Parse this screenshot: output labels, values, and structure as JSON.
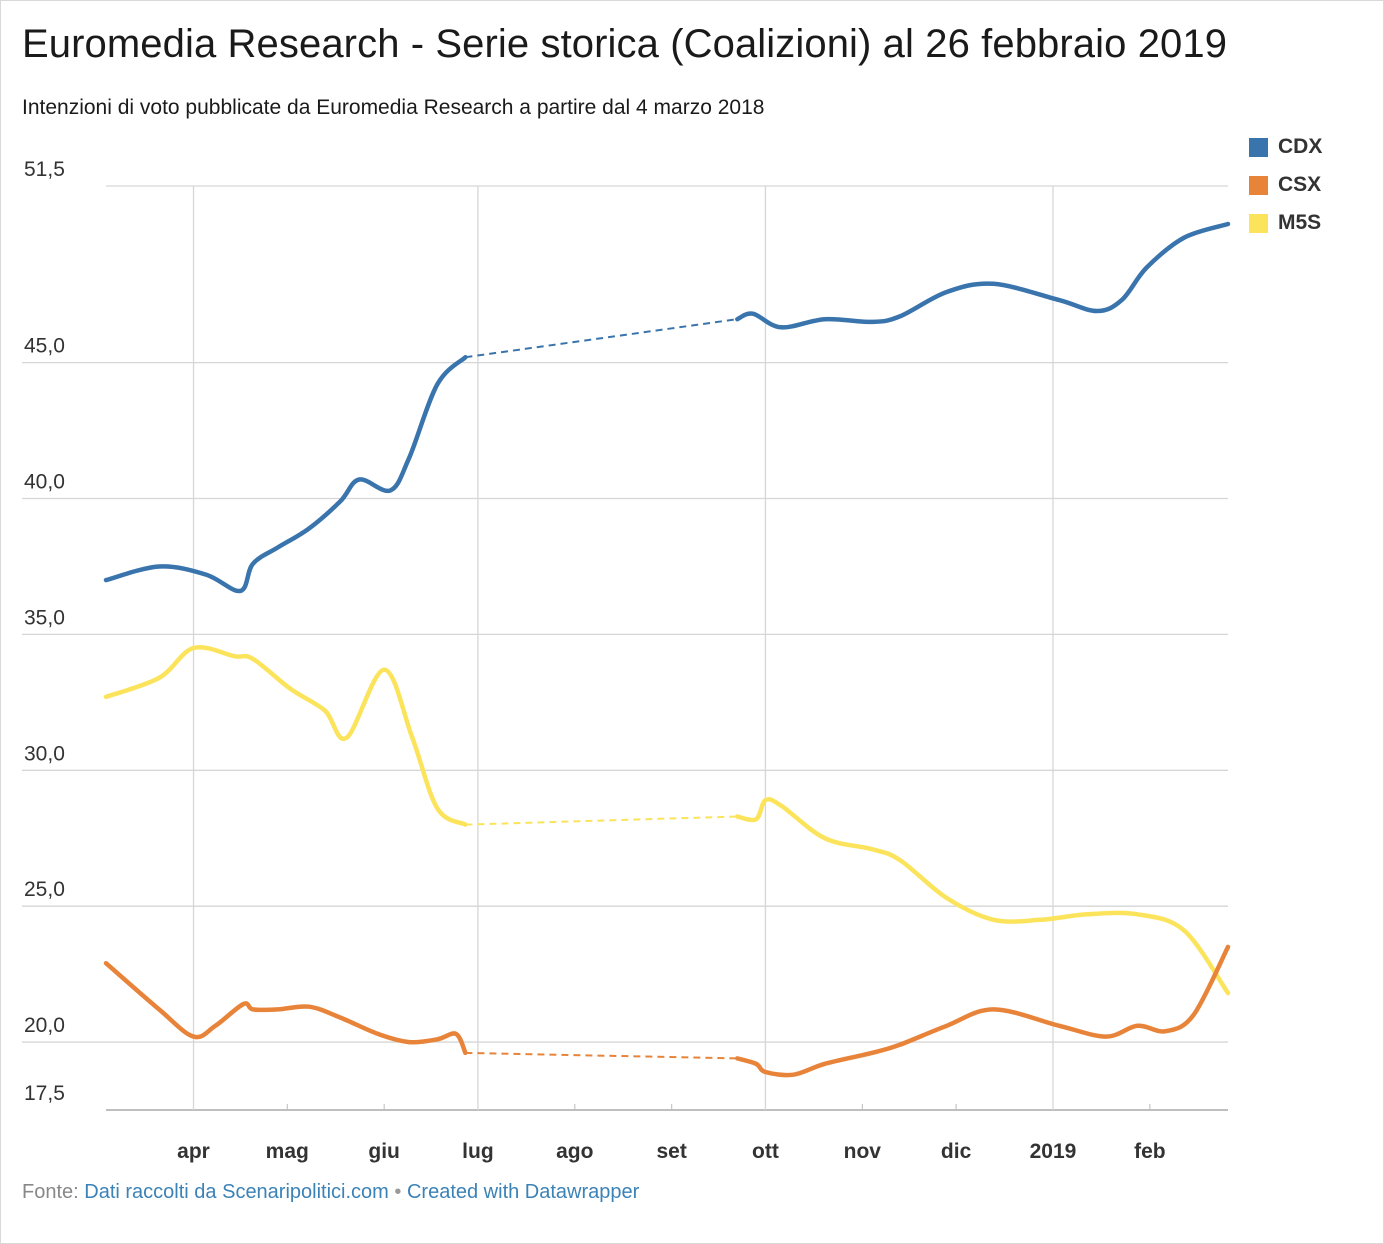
{
  "title": "Euromedia Research - Serie storica (Coalizioni) al 26 febbraio 2019",
  "subtitle": "Intenzioni di voto pubblicate da Euromedia Research a partire dal 4 marzo 2018",
  "footer": {
    "prefix": "Fonte:",
    "source_link": "Dati raccolti da Scenaripolitici.com",
    "separator": "•",
    "credit_link": "Created with Datawrapper"
  },
  "chart_data": {
    "type": "line",
    "title": "Euromedia Research - Serie storica (Coalizioni) al 26 febbraio 2019",
    "xlabel": "",
    "ylabel": "",
    "x_range": [
      "2018-03-04",
      "2019-02-26"
    ],
    "ylim": [
      17.5,
      51.5
    ],
    "y_ticks": [
      {
        "value": 51.5,
        "label": "51,5"
      },
      {
        "value": 45.0,
        "label": "45,0"
      },
      {
        "value": 40.0,
        "label": "40,0"
      },
      {
        "value": 35.0,
        "label": "35,0"
      },
      {
        "value": 30.0,
        "label": "30,0"
      },
      {
        "value": 25.0,
        "label": "25,0"
      },
      {
        "value": 20.0,
        "label": "20,0"
      },
      {
        "value": 17.5,
        "label": "17,5"
      }
    ],
    "x_ticks": [
      {
        "date": "2018-04-01",
        "label": "apr",
        "gridline": true
      },
      {
        "date": "2018-05-01",
        "label": "mag",
        "gridline": false
      },
      {
        "date": "2018-06-01",
        "label": "giu",
        "gridline": false
      },
      {
        "date": "2018-07-01",
        "label": "lug",
        "gridline": true
      },
      {
        "date": "2018-08-01",
        "label": "ago",
        "gridline": false
      },
      {
        "date": "2018-09-01",
        "label": "set",
        "gridline": false
      },
      {
        "date": "2018-10-01",
        "label": "ott",
        "gridline": true
      },
      {
        "date": "2018-11-01",
        "label": "nov",
        "gridline": false
      },
      {
        "date": "2018-12-01",
        "label": "dic",
        "gridline": false
      },
      {
        "date": "2019-01-01",
        "label": "2019",
        "gridline": true
      },
      {
        "date": "2019-02-01",
        "label": "feb",
        "gridline": false
      }
    ],
    "grid": true,
    "legend_position": "top-right",
    "series": [
      {
        "name": "CDX",
        "color": "#3a74ad",
        "gap": [
          "2018-06-27",
          "2018-09-22"
        ],
        "points": [
          [
            "2018-03-04",
            37.0
          ],
          [
            "2018-03-21",
            37.5
          ],
          [
            "2018-04-05",
            37.2
          ],
          [
            "2018-04-16",
            36.6
          ],
          [
            "2018-04-20",
            37.6
          ],
          [
            "2018-04-28",
            38.2
          ],
          [
            "2018-05-08",
            38.9
          ],
          [
            "2018-05-18",
            39.9
          ],
          [
            "2018-05-24",
            40.7
          ],
          [
            "2018-06-03",
            40.3
          ],
          [
            "2018-06-09",
            41.5
          ],
          [
            "2018-06-18",
            44.2
          ],
          [
            "2018-06-27",
            45.2
          ],
          [
            "2018-09-22",
            46.6
          ],
          [
            "2018-09-27",
            46.8
          ],
          [
            "2018-10-06",
            46.3
          ],
          [
            "2018-10-20",
            46.6
          ],
          [
            "2018-11-04",
            46.5
          ],
          [
            "2018-11-13",
            46.7
          ],
          [
            "2018-11-28",
            47.6
          ],
          [
            "2018-12-13",
            47.9
          ],
          [
            "2019-01-03",
            47.3
          ],
          [
            "2019-01-15",
            46.9
          ],
          [
            "2019-01-23",
            47.3
          ],
          [
            "2019-01-31",
            48.5
          ],
          [
            "2019-02-12",
            49.6
          ],
          [
            "2019-02-26",
            50.1
          ]
        ]
      },
      {
        "name": "CSX",
        "color": "#e8843a",
        "gap": [
          "2018-06-27",
          "2018-09-22"
        ],
        "points": [
          [
            "2018-03-04",
            22.9
          ],
          [
            "2018-03-21",
            21.2
          ],
          [
            "2018-04-01",
            20.2
          ],
          [
            "2018-04-08",
            20.6
          ],
          [
            "2018-04-17",
            21.4
          ],
          [
            "2018-04-20",
            21.2
          ],
          [
            "2018-04-28",
            21.2
          ],
          [
            "2018-05-08",
            21.3
          ],
          [
            "2018-05-18",
            20.9
          ],
          [
            "2018-05-30",
            20.3
          ],
          [
            "2018-06-09",
            20.0
          ],
          [
            "2018-06-18",
            20.1
          ],
          [
            "2018-06-24",
            20.3
          ],
          [
            "2018-06-27",
            19.6
          ],
          [
            "2018-09-22",
            19.4
          ],
          [
            "2018-09-28",
            19.2
          ],
          [
            "2018-10-01",
            18.9
          ],
          [
            "2018-10-10",
            18.8
          ],
          [
            "2018-10-20",
            19.2
          ],
          [
            "2018-11-04",
            19.6
          ],
          [
            "2018-11-13",
            19.9
          ],
          [
            "2018-11-28",
            20.6
          ],
          [
            "2018-12-13",
            21.2
          ],
          [
            "2019-01-03",
            20.6
          ],
          [
            "2019-01-18",
            20.2
          ],
          [
            "2019-01-28",
            20.6
          ],
          [
            "2019-02-06",
            20.4
          ],
          [
            "2019-02-15",
            21.0
          ],
          [
            "2019-02-26",
            23.5
          ]
        ]
      },
      {
        "name": "M5S",
        "color": "#fbe45b",
        "gap": [
          "2018-06-27",
          "2018-09-22"
        ],
        "points": [
          [
            "2018-03-04",
            32.7
          ],
          [
            "2018-03-21",
            33.4
          ],
          [
            "2018-04-01",
            34.5
          ],
          [
            "2018-04-14",
            34.2
          ],
          [
            "2018-04-20",
            34.1
          ],
          [
            "2018-05-02",
            33.0
          ],
          [
            "2018-05-13",
            32.2
          ],
          [
            "2018-05-20",
            31.2
          ],
          [
            "2018-06-01",
            33.7
          ],
          [
            "2018-06-10",
            31.2
          ],
          [
            "2018-06-18",
            28.6
          ],
          [
            "2018-06-27",
            28.0
          ],
          [
            "2018-09-22",
            28.3
          ],
          [
            "2018-09-28",
            28.2
          ],
          [
            "2018-10-01",
            28.9
          ],
          [
            "2018-10-06",
            28.7
          ],
          [
            "2018-10-20",
            27.5
          ],
          [
            "2018-11-04",
            27.1
          ],
          [
            "2018-11-13",
            26.7
          ],
          [
            "2018-11-28",
            25.3
          ],
          [
            "2018-12-13",
            24.5
          ],
          [
            "2018-12-28",
            24.5
          ],
          [
            "2019-01-12",
            24.7
          ],
          [
            "2019-01-28",
            24.7
          ],
          [
            "2019-02-12",
            24.1
          ],
          [
            "2019-02-26",
            21.8
          ]
        ]
      }
    ]
  }
}
